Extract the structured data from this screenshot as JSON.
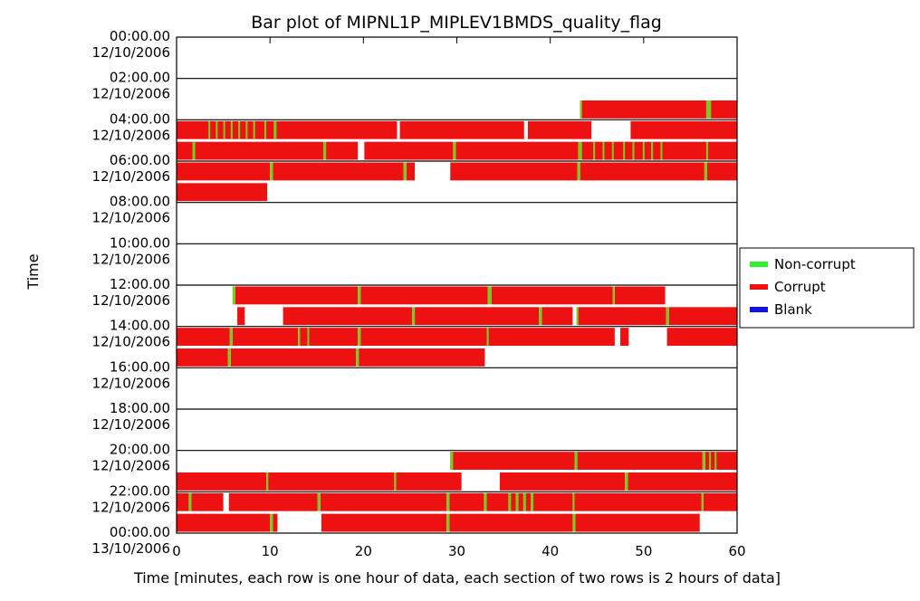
{
  "chart_data": {
    "type": "bar",
    "title": "Bar plot of MIPNL1P_MIPLEV1BMDS_quality_flag",
    "xlabel": "Time [minutes, each row is one hour of data, each section of two rows is 2 hours of data]",
    "ylabel": "Time",
    "xlim": [
      0,
      60
    ],
    "x_ticks": [
      "0",
      "10",
      "20",
      "30",
      "40",
      "50",
      "60"
    ],
    "y_ticks": [
      {
        "time": "00:00.00",
        "date": "12/10/2006"
      },
      {
        "time": "02:00.00",
        "date": "12/10/2006"
      },
      {
        "time": "04:00.00",
        "date": "12/10/2006"
      },
      {
        "time": "06:00.00",
        "date": "12/10/2006"
      },
      {
        "time": "08:00.00",
        "date": "12/10/2006"
      },
      {
        "time": "10:00.00",
        "date": "12/10/2006"
      },
      {
        "time": "12:00.00",
        "date": "12/10/2006"
      },
      {
        "time": "14:00.00",
        "date": "12/10/2006"
      },
      {
        "time": "16:00.00",
        "date": "12/10/2006"
      },
      {
        "time": "18:00.00",
        "date": "12/10/2006"
      },
      {
        "time": "20:00.00",
        "date": "12/10/2006"
      },
      {
        "time": "22:00.00",
        "date": "12/10/2006"
      },
      {
        "time": "00:00.00",
        "date": "13/10/2006"
      }
    ],
    "legend": {
      "placement": "right",
      "entries": [
        {
          "label": "Non-corrupt",
          "color": "#33ee33"
        },
        {
          "label": "Corrupt",
          "color": "#ee1111"
        },
        {
          "label": "Blank",
          "color": "#1111ee"
        }
      ]
    },
    "colors": {
      "corrupt": "#ee1111",
      "noncorrupt": "#77cc22",
      "blank": "#1111ee"
    },
    "rows": [
      {
        "hour": 0,
        "corrupt": [],
        "noncorrupt": []
      },
      {
        "hour": 1,
        "corrupt": [],
        "noncorrupt": []
      },
      {
        "hour": 2,
        "corrupt": [],
        "noncorrupt": []
      },
      {
        "hour": 3,
        "corrupt": [
          [
            43.2,
            56.7
          ],
          [
            57.2,
            60
          ]
        ],
        "noncorrupt": [
          [
            43.2,
            43.4
          ],
          [
            56.7,
            57.2
          ]
        ]
      },
      {
        "hour": 4,
        "corrupt": [
          [
            0,
            23.6
          ],
          [
            23.9,
            37.2
          ],
          [
            37.6,
            44.4
          ],
          [
            48.6,
            60
          ]
        ],
        "noncorrupt": [
          [
            3.4,
            3.6
          ],
          [
            4.2,
            4.4
          ],
          [
            5.0,
            5.2
          ],
          [
            5.8,
            6.0
          ],
          [
            6.6,
            6.8
          ],
          [
            7.4,
            7.6
          ],
          [
            8.2,
            8.4
          ],
          [
            9.4,
            9.6
          ],
          [
            10.4,
            10.7
          ]
        ]
      },
      {
        "hour": 5,
        "corrupt": [
          [
            0,
            15.7
          ],
          [
            16.0,
            19.4
          ],
          [
            20.1,
            29.6
          ],
          [
            29.9,
            43.0
          ],
          [
            43.2,
            56.7
          ],
          [
            56.9,
            60
          ]
        ],
        "noncorrupt": [
          [
            1.7,
            2.0
          ],
          [
            15.7,
            16.0
          ],
          [
            29.6,
            29.9
          ],
          [
            43.0,
            43.4
          ],
          [
            44.6,
            44.8
          ],
          [
            45.6,
            45.8
          ],
          [
            46.6,
            46.8
          ],
          [
            47.8,
            48.0
          ],
          [
            48.8,
            49.0
          ],
          [
            49.9,
            50.1
          ],
          [
            50.8,
            51.0
          ],
          [
            51.8,
            52.0
          ],
          [
            56.7,
            56.9
          ]
        ]
      },
      {
        "hour": 6,
        "corrupt": [
          [
            0,
            10.0
          ],
          [
            10.3,
            24.3
          ],
          [
            24.6,
            25.5
          ],
          [
            29.3,
            42.9
          ],
          [
            43.2,
            56.5
          ],
          [
            56.8,
            60
          ]
        ],
        "noncorrupt": [
          [
            10.0,
            10.3
          ],
          [
            24.3,
            24.6
          ],
          [
            42.9,
            43.2
          ],
          [
            56.5,
            56.8
          ]
        ]
      },
      {
        "hour": 7,
        "corrupt": [
          [
            0,
            9.7
          ]
        ],
        "noncorrupt": []
      },
      {
        "hour": 8,
        "corrupt": [],
        "noncorrupt": []
      },
      {
        "hour": 9,
        "corrupt": [],
        "noncorrupt": []
      },
      {
        "hour": 10,
        "corrupt": [],
        "noncorrupt": []
      },
      {
        "hour": 11,
        "corrupt": [],
        "noncorrupt": []
      },
      {
        "hour": 12,
        "corrupt": [
          [
            6.0,
            19.4
          ],
          [
            19.7,
            33.3
          ],
          [
            33.7,
            46.7
          ],
          [
            46.9,
            52.3
          ]
        ],
        "noncorrupt": [
          [
            6.0,
            6.3
          ],
          [
            19.4,
            19.7
          ],
          [
            33.3,
            33.7
          ],
          [
            46.7,
            46.9
          ]
        ]
      },
      {
        "hour": 13,
        "corrupt": [
          [
            6.5,
            7.3
          ],
          [
            11.4,
            25.2
          ],
          [
            25.5,
            38.8
          ],
          [
            39.1,
            42.4
          ],
          [
            43.0,
            52.4
          ],
          [
            52.7,
            60
          ]
        ],
        "noncorrupt": [
          [
            25.2,
            25.5
          ],
          [
            38.8,
            39.1
          ],
          [
            42.8,
            43.0
          ],
          [
            52.4,
            52.7
          ]
        ]
      },
      {
        "hour": 14,
        "corrupt": [
          [
            0,
            5.7
          ],
          [
            6.0,
            13.0
          ],
          [
            13.2,
            19.4
          ],
          [
            19.7,
            33.2
          ],
          [
            33.4,
            46.9
          ],
          [
            47.5,
            48.4
          ],
          [
            52.5,
            60
          ]
        ],
        "noncorrupt": [
          [
            5.7,
            6.0
          ],
          [
            13.0,
            13.2
          ],
          [
            14.0,
            14.2
          ],
          [
            19.4,
            19.7
          ],
          [
            33.2,
            33.4
          ]
        ]
      },
      {
        "hour": 15,
        "corrupt": [
          [
            0,
            5.5
          ],
          [
            5.8,
            19.2
          ],
          [
            19.5,
            33.0
          ]
        ],
        "noncorrupt": [
          [
            5.5,
            5.8
          ],
          [
            19.2,
            19.5
          ]
        ]
      },
      {
        "hour": 16,
        "corrupt": [],
        "noncorrupt": []
      },
      {
        "hour": 17,
        "corrupt": [],
        "noncorrupt": []
      },
      {
        "hour": 18,
        "corrupt": [],
        "noncorrupt": []
      },
      {
        "hour": 19,
        "corrupt": [],
        "noncorrupt": []
      },
      {
        "hour": 20,
        "corrupt": [
          [
            29.3,
            42.6
          ],
          [
            42.9,
            56.3
          ],
          [
            56.6,
            60
          ]
        ],
        "noncorrupt": [
          [
            29.3,
            29.6
          ],
          [
            42.6,
            42.9
          ],
          [
            56.3,
            56.6
          ],
          [
            57.0,
            57.2
          ],
          [
            57.6,
            57.8
          ]
        ]
      },
      {
        "hour": 21,
        "corrupt": [
          [
            0,
            9.6
          ],
          [
            9.8,
            23.3
          ],
          [
            23.5,
            30.5
          ],
          [
            34.6,
            48.0
          ],
          [
            48.3,
            60
          ]
        ],
        "noncorrupt": [
          [
            9.6,
            9.8
          ],
          [
            23.3,
            23.5
          ],
          [
            48.0,
            48.3
          ]
        ]
      },
      {
        "hour": 22,
        "corrupt": [
          [
            0,
            1.3
          ],
          [
            1.6,
            5.0
          ],
          [
            5.6,
            15.1
          ],
          [
            15.4,
            28.9
          ],
          [
            29.2,
            32.9
          ],
          [
            33.2,
            42.4
          ],
          [
            42.6,
            56.2
          ],
          [
            56.4,
            60
          ]
        ],
        "noncorrupt": [
          [
            1.3,
            1.6
          ],
          [
            15.1,
            15.4
          ],
          [
            28.9,
            29.2
          ],
          [
            32.9,
            33.2
          ],
          [
            35.5,
            35.8
          ],
          [
            36.3,
            36.6
          ],
          [
            37.1,
            37.4
          ],
          [
            37.9,
            38.2
          ],
          [
            42.4,
            42.6
          ],
          [
            56.2,
            56.4
          ]
        ]
      },
      {
        "hour": 23,
        "corrupt": [
          [
            0,
            10.0
          ],
          [
            10.3,
            10.8
          ],
          [
            15.5,
            28.9
          ],
          [
            29.2,
            42.4
          ],
          [
            42.7,
            56.0
          ]
        ],
        "noncorrupt": [
          [
            10.0,
            10.3
          ],
          [
            28.9,
            29.2
          ],
          [
            42.4,
            42.7
          ]
        ]
      }
    ]
  }
}
